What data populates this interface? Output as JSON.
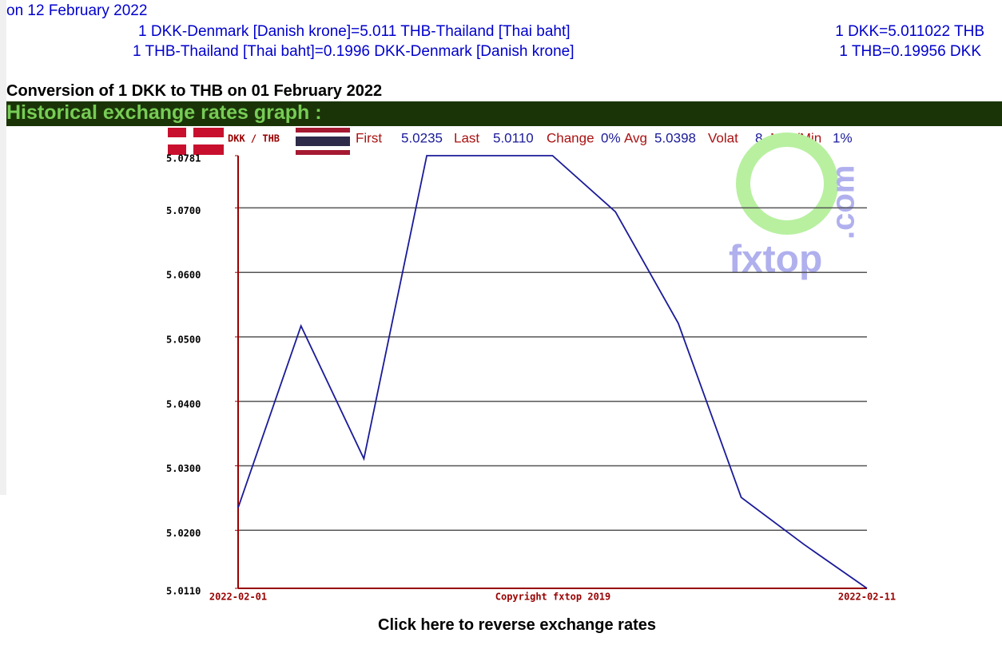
{
  "header": {
    "date": "on 12 February 2022",
    "rates": [
      {
        "text": "1 DKK-Denmark [Danish krone]=5.011 THB-Thailand [Thai baht]",
        "short": "1 DKK=5.011022 THB"
      },
      {
        "text": "1 THB-Thailand [Thai baht]=0.1996 DKK-Denmark [Danish krone]",
        "short": "1 THB=0.19956 DKK"
      }
    ],
    "conversion": "Conversion of 1 DKK to THB on 01 February 2022"
  },
  "section": {
    "title": "Historical exchange rates graph :"
  },
  "chart_data": {
    "type": "line",
    "pair": "DKK / THB",
    "stats": {
      "first_label": "First",
      "first": "5.0235",
      "last_label": "Last",
      "last": "5.0110",
      "change_label": "Change",
      "change": "0%",
      "avg_label": "Avg",
      "avg": "5.0398",
      "volat_label": "Volat",
      "volat": "8",
      "maxmin_label": "Max/Min",
      "maxmin": "1%"
    },
    "watermark": {
      "name": "fxtop",
      "suffix": ".com"
    },
    "copyright": "Copyright fxtop 2019",
    "categories": [
      "2022-02-01",
      null,
      null,
      null,
      null,
      null,
      null,
      null,
      null,
      null,
      "2022-02-11"
    ],
    "values": [
      5.0235,
      5.0517,
      5.0311,
      5.0781,
      5.0781,
      5.0781,
      5.0694,
      5.0521,
      5.0251,
      5.0178,
      5.011
    ],
    "color": "#1a1a99",
    "ylim": [
      5.011,
      5.0781
    ],
    "yticks": [
      {
        "value": 5.011,
        "label": "5.0110"
      },
      {
        "value": 5.02,
        "label": "5.0200"
      },
      {
        "value": 5.03,
        "label": "5.0300"
      },
      {
        "value": 5.04,
        "label": "5.0400"
      },
      {
        "value": 5.05,
        "label": "5.0500"
      },
      {
        "value": 5.06,
        "label": "5.0600"
      },
      {
        "value": 5.07,
        "label": "5.0700"
      },
      5.0781
    ],
    "grid": true
  },
  "footer": {
    "link": "Click here to reverse exchange rates"
  }
}
